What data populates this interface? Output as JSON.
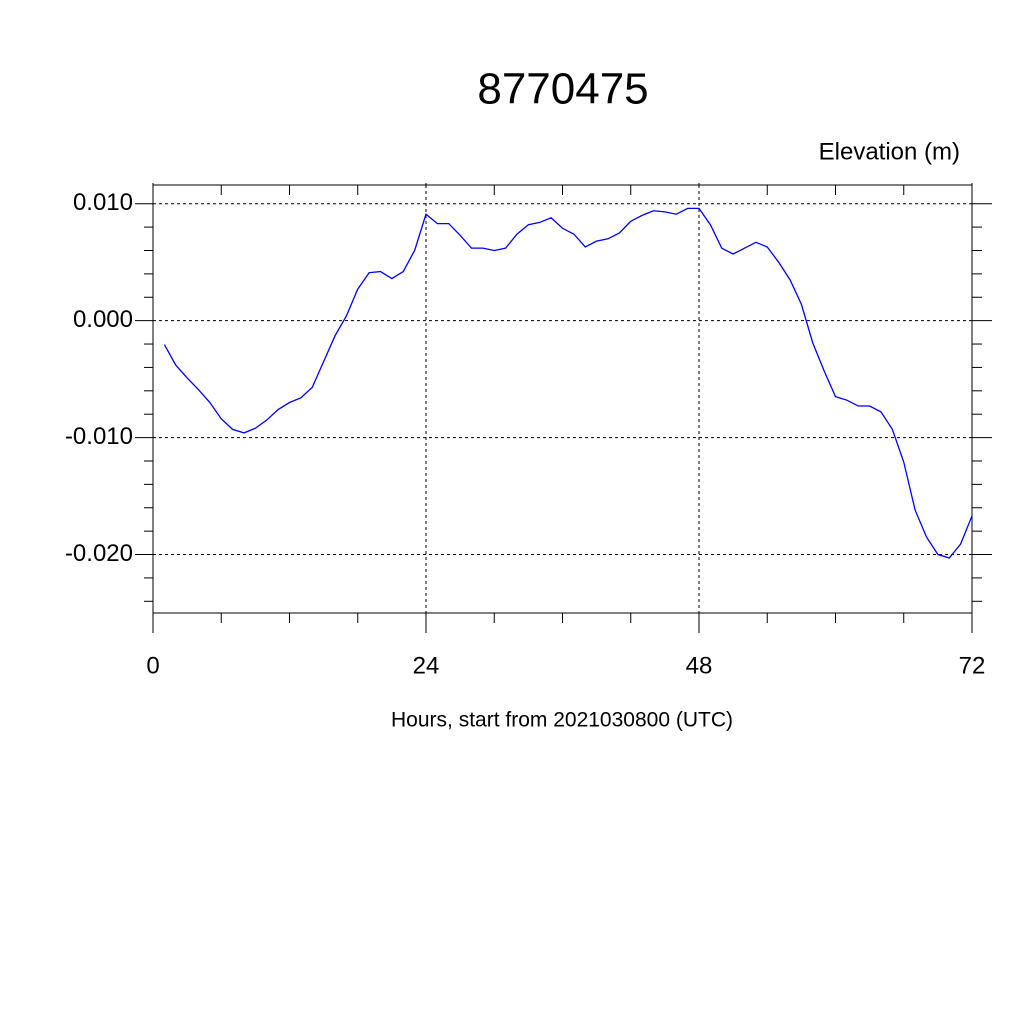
{
  "chart_data": {
    "type": "line",
    "title": "8770475",
    "ylabel": "Elevation (m)",
    "xlabel": "Hours, start from 2021030800 (UTC)",
    "xlim": [
      0,
      72
    ],
    "xticks": [
      0,
      24,
      48,
      72
    ],
    "xminor_ticks": [
      6,
      12,
      18,
      30,
      36,
      42,
      54,
      60,
      66
    ],
    "ylim": [
      -0.025,
      0.0116
    ],
    "yticks": [
      {
        "value": -0.02,
        "label": "-0.020"
      },
      {
        "value": -0.01,
        "label": "-0.010"
      },
      {
        "value": 0,
        "label": "0.000"
      },
      {
        "value": 0.01,
        "label": "0.010"
      }
    ],
    "yminor_ticks": [
      -0.024,
      -0.022,
      -0.018,
      -0.016,
      -0.014,
      -0.012,
      -0.008,
      -0.006,
      -0.004,
      -0.002,
      0.002,
      0.004,
      0.006,
      0.008
    ],
    "grid": true,
    "x": [
      1,
      2,
      3,
      4,
      5,
      6,
      7,
      8,
      9,
      10,
      11,
      12,
      13,
      14,
      15,
      16,
      17,
      18,
      19,
      20,
      21,
      22,
      23,
      24,
      25,
      26,
      27,
      28,
      29,
      30,
      31,
      32,
      33,
      34,
      35,
      36,
      37,
      38,
      39,
      40,
      41,
      42,
      43,
      44,
      45,
      46,
      47,
      48,
      49,
      50,
      51,
      52,
      53,
      54,
      55,
      56,
      57,
      58,
      59,
      60,
      61,
      62,
      63,
      64,
      65,
      66,
      67,
      68,
      69,
      70,
      71,
      72
    ],
    "series": [
      {
        "color": "#0000ff",
        "values": [
          -0.00205,
          -0.0038,
          -0.0049,
          -0.0059,
          -0.007,
          -0.0084,
          -0.0093,
          -0.0096,
          -0.0092,
          -0.0085,
          -0.0076,
          -0.007,
          -0.0066,
          -0.0057,
          -0.0035,
          -0.0013,
          0.0004,
          0.0027,
          0.0041,
          0.0042,
          0.0036,
          0.0042,
          0.006,
          0.0091,
          0.0083,
          0.0083,
          0.0073,
          0.0062,
          0.0062,
          0.006,
          0.0062,
          0.0074,
          0.0082,
          0.0084,
          0.0088,
          0.0079,
          0.0074,
          0.0063,
          0.0068,
          0.007,
          0.0075,
          0.0085,
          0.009,
          0.0094,
          0.0093,
          0.0091,
          0.0096,
          0.0096,
          0.0082,
          0.0062,
          0.0057,
          0.0062,
          0.0067,
          0.0063,
          0.005,
          0.0035,
          0.0014,
          -0.0019,
          -0.0043,
          -0.0065,
          -0.0068,
          -0.0073,
          -0.0073,
          -0.0078,
          -0.0093,
          -0.0121,
          -0.0162,
          -0.0185,
          -0.02,
          -0.0203,
          -0.0191,
          -0.0167
        ]
      }
    ]
  }
}
